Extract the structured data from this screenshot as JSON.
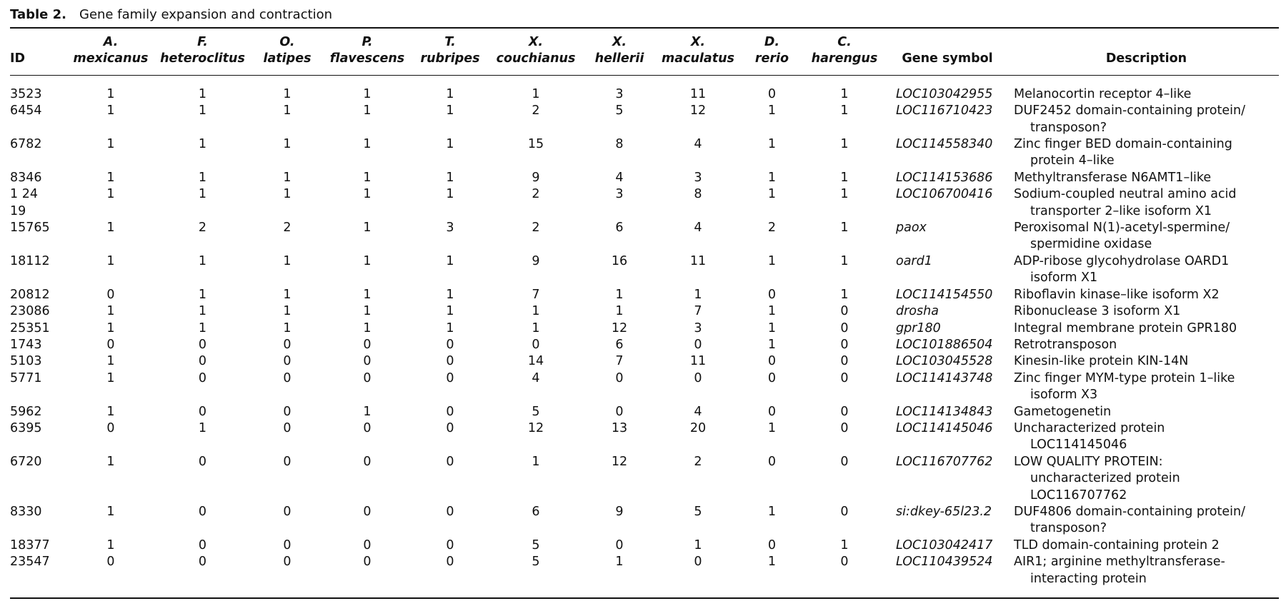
{
  "title": {
    "label": "Table 2.",
    "text": "Gene family expansion and contraction"
  },
  "table": {
    "header": {
      "id": "ID",
      "species": [
        [
          "A.",
          "mexicanus"
        ],
        [
          "F.",
          "heteroclitus"
        ],
        [
          "O.",
          "latipes"
        ],
        [
          "P.",
          "flavescens"
        ],
        [
          "T.",
          "rubripes"
        ],
        [
          "X.",
          "couchianus"
        ],
        [
          "X.",
          "hellerii"
        ],
        [
          "X.",
          "maculatus"
        ],
        [
          "D.",
          "rerio"
        ],
        [
          "C.",
          "harengus"
        ]
      ],
      "gene_symbol": "Gene symbol",
      "description": "Description"
    },
    "rows": [
      {
        "id": "3523",
        "counts": [
          1,
          1,
          1,
          1,
          1,
          1,
          3,
          11,
          0,
          1
        ],
        "gene_symbol": "LOC103042955",
        "description": [
          "Melanocortin receptor 4–like"
        ]
      },
      {
        "id": "6454",
        "counts": [
          1,
          1,
          1,
          1,
          1,
          2,
          5,
          12,
          1,
          1
        ],
        "gene_symbol": "LOC116710423",
        "description": [
          "DUF2452 domain-containing protein/",
          "transposon?"
        ]
      },
      {
        "id": "6782",
        "counts": [
          1,
          1,
          1,
          1,
          1,
          15,
          8,
          4,
          1,
          1
        ],
        "gene_symbol": "LOC114558340",
        "description": [
          "Zinc finger BED domain-containing",
          "protein 4–like"
        ]
      },
      {
        "id": "8346",
        "counts": [
          1,
          1,
          1,
          1,
          1,
          9,
          4,
          3,
          1,
          1
        ],
        "gene_symbol": "LOC114153686",
        "description": [
          "Methyltransferase N6AMT1–like"
        ]
      },
      {
        "id": "1 24\n19",
        "counts": [
          1,
          1,
          1,
          1,
          1,
          2,
          3,
          8,
          1,
          1
        ],
        "gene_symbol": "LOC106700416",
        "description": [
          "Sodium-coupled neutral amino acid",
          "transporter 2–like isoform X1"
        ]
      },
      {
        "id": "15765",
        "counts": [
          1,
          2,
          2,
          1,
          3,
          2,
          6,
          4,
          2,
          1
        ],
        "gene_symbol": "paox",
        "description": [
          "Peroxisomal N(1)-acetyl-spermine/",
          "spermidine oxidase"
        ]
      },
      {
        "id": "18112",
        "counts": [
          1,
          1,
          1,
          1,
          1,
          9,
          16,
          11,
          1,
          1
        ],
        "gene_symbol": "oard1",
        "description": [
          "ADP-ribose glycohydrolase OARD1",
          "isoform X1"
        ]
      },
      {
        "id": "20812",
        "counts": [
          0,
          1,
          1,
          1,
          1,
          7,
          1,
          1,
          0,
          1
        ],
        "gene_symbol": "LOC114154550",
        "description": [
          "Riboflavin kinase–like isoform X2"
        ]
      },
      {
        "id": "23086",
        "counts": [
          1,
          1,
          1,
          1,
          1,
          1,
          1,
          7,
          1,
          0
        ],
        "gene_symbol": "drosha",
        "description": [
          "Ribonuclease 3 isoform X1"
        ]
      },
      {
        "id": "25351",
        "counts": [
          1,
          1,
          1,
          1,
          1,
          1,
          12,
          3,
          1,
          0
        ],
        "gene_symbol": "gpr180",
        "description": [
          "Integral membrane protein GPR180"
        ]
      },
      {
        "id": "1743",
        "counts": [
          0,
          0,
          0,
          0,
          0,
          0,
          6,
          0,
          1,
          0
        ],
        "gene_symbol": "LOC101886504",
        "description": [
          "Retrotransposon"
        ]
      },
      {
        "id": "5103",
        "counts": [
          1,
          0,
          0,
          0,
          0,
          14,
          7,
          11,
          0,
          0
        ],
        "gene_symbol": "LOC103045528",
        "description": [
          "Kinesin-like protein KIN-14N"
        ]
      },
      {
        "id": "5771",
        "counts": [
          1,
          0,
          0,
          0,
          0,
          4,
          0,
          0,
          0,
          0
        ],
        "gene_symbol": "LOC114143748",
        "description": [
          "Zinc finger MYM-type protein 1–like",
          "isoform X3"
        ]
      },
      {
        "id": "5962",
        "counts": [
          1,
          0,
          0,
          1,
          0,
          5,
          0,
          4,
          0,
          0
        ],
        "gene_symbol": "LOC114134843",
        "description": [
          "Gametogenetin"
        ]
      },
      {
        "id": "6395",
        "counts": [
          0,
          1,
          0,
          0,
          0,
          12,
          13,
          20,
          1,
          0
        ],
        "gene_symbol": "LOC114145046",
        "description": [
          "Uncharacterized protein",
          "LOC114145046"
        ]
      },
      {
        "id": "6720",
        "counts": [
          1,
          0,
          0,
          0,
          0,
          1,
          12,
          2,
          0,
          0
        ],
        "gene_symbol": "LOC116707762",
        "description": [
          "LOW QUALITY PROTEIN:",
          "uncharacterized protein",
          "LOC116707762"
        ]
      },
      {
        "id": "8330",
        "counts": [
          1,
          0,
          0,
          0,
          0,
          6,
          9,
          5,
          1,
          0
        ],
        "gene_symbol": "si:dkey-65l23.2",
        "description": [
          "DUF4806 domain-containing protein/",
          "transposon?"
        ]
      },
      {
        "id": "18377",
        "counts": [
          1,
          0,
          0,
          0,
          0,
          5,
          0,
          1,
          0,
          1
        ],
        "gene_symbol": "LOC103042417",
        "description": [
          "TLD domain-containing protein 2"
        ]
      },
      {
        "id": "23547",
        "counts": [
          0,
          0,
          0,
          0,
          0,
          5,
          1,
          0,
          1,
          0
        ],
        "gene_symbol": "LOC110439524",
        "description": [
          "AIR1; arginine methyltransferase-",
          "interacting protein"
        ]
      }
    ]
  }
}
